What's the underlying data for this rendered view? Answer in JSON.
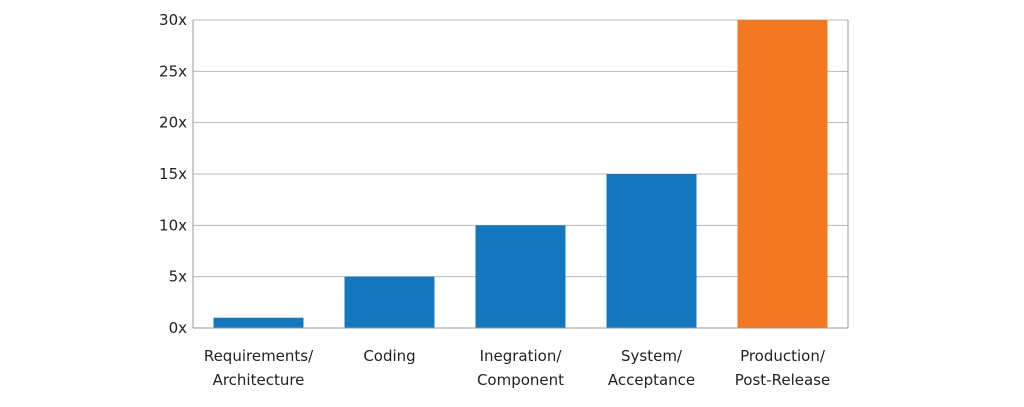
{
  "chart_data": {
    "type": "bar",
    "categories": [
      [
        "Requirements/",
        "Architecture"
      ],
      [
        "Coding"
      ],
      [
        "Inegration/",
        "Component"
      ],
      [
        "System/",
        "Acceptance"
      ],
      [
        "Production/",
        "Post-Release"
      ]
    ],
    "values": [
      1,
      5,
      10,
      15,
      30
    ],
    "bar_colors": [
      "#1478be",
      "#1478be",
      "#1478be",
      "#1478be",
      "#f47721"
    ],
    "ylim": [
      0,
      30
    ],
    "yticks": [
      0,
      5,
      10,
      15,
      20,
      25,
      30
    ],
    "ytick_suffix": "x",
    "grid": true,
    "gridline_color": "#b8b8b8",
    "title": "",
    "xlabel": "",
    "ylabel": ""
  }
}
